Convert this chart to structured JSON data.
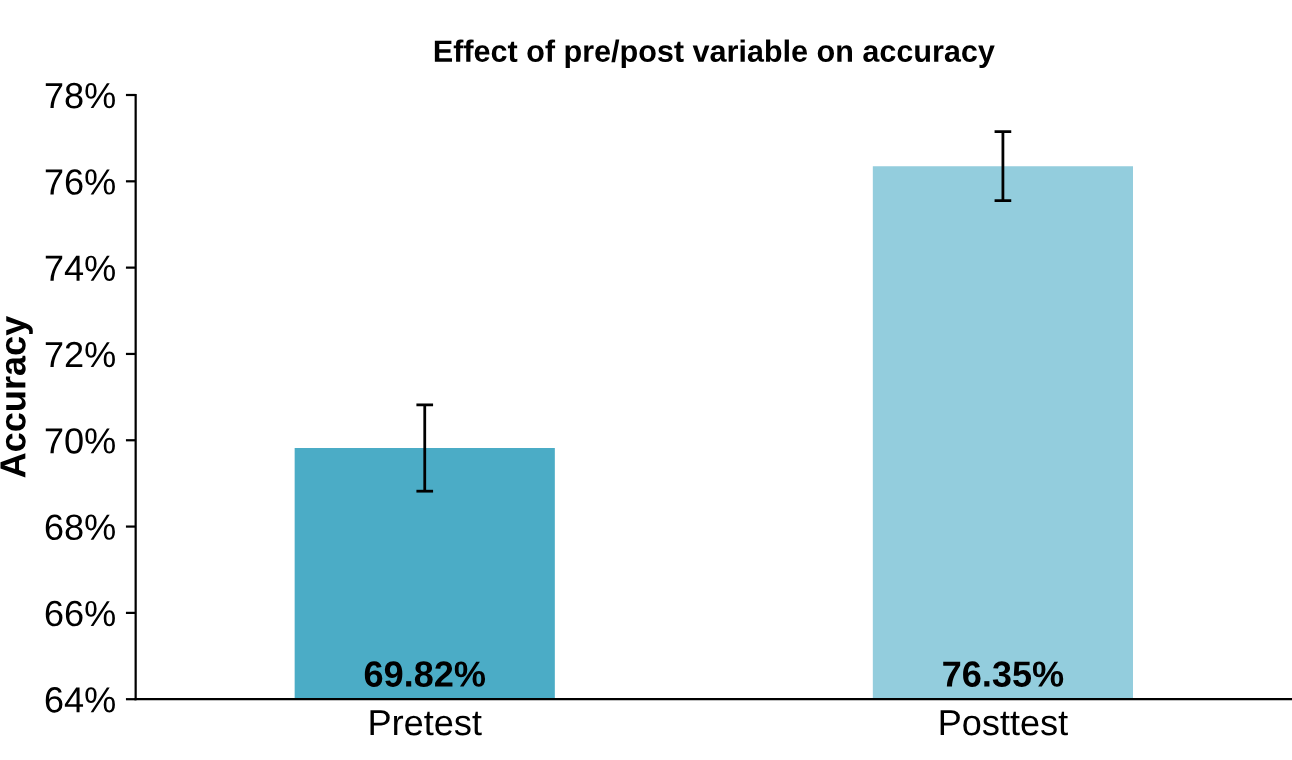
{
  "chart_data": {
    "type": "bar",
    "title": "Effect of pre/post variable on accuracy",
    "ylabel": "Accuracy",
    "categories": [
      "Pretest",
      "Posttest"
    ],
    "values": [
      69.82,
      76.35
    ],
    "colors": [
      "#4bacc6",
      "#93cddd"
    ],
    "errors": [
      1.0,
      0.8
    ],
    "value_labels": [
      "69.82%",
      "76.35%"
    ],
    "ylim": [
      64,
      78
    ],
    "yticks": [
      {
        "value": 64,
        "label": "64%"
      },
      {
        "value": 66,
        "label": "66%"
      },
      {
        "value": 68,
        "label": "68%"
      },
      {
        "value": 70,
        "label": "70%"
      },
      {
        "value": 72,
        "label": "72%"
      },
      {
        "value": 74,
        "label": "74%"
      },
      {
        "value": 76,
        "label": "76%"
      },
      {
        "value": 78,
        "label": "78%"
      }
    ],
    "grid": false
  }
}
